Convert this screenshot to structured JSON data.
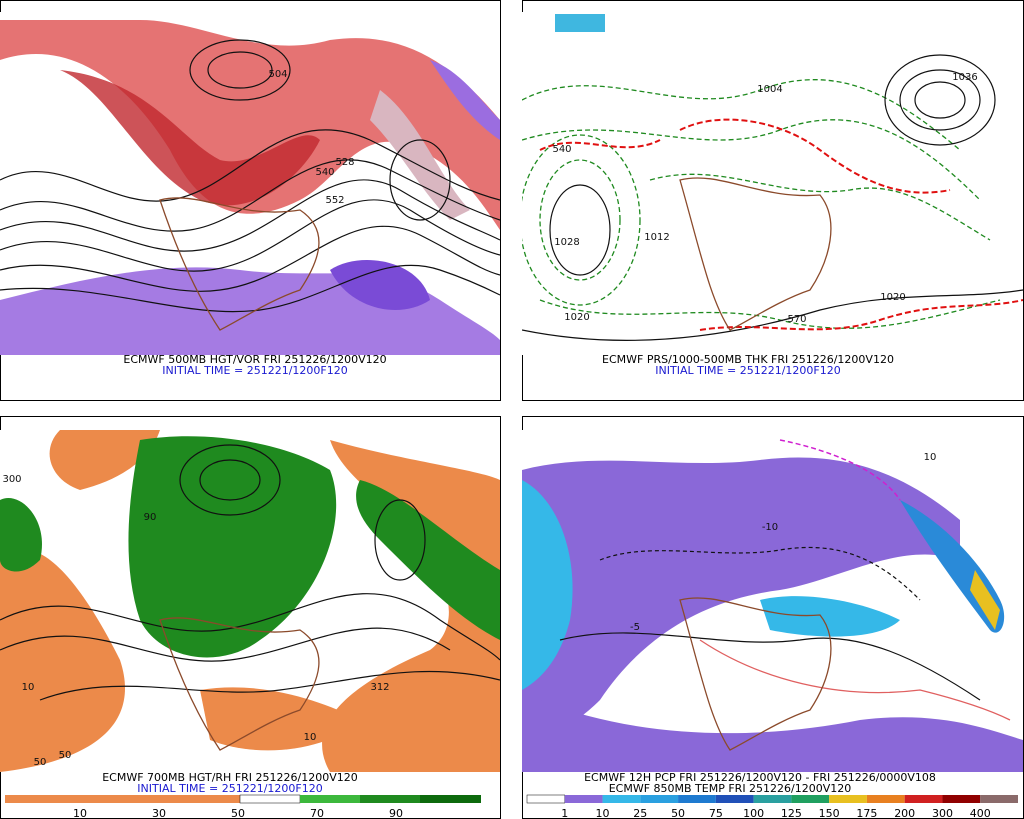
{
  "panels": [
    {
      "caption": "ECMWF 500MB HGT/VOR FRI 251226/1200V120",
      "initial": "INITIAL TIME = 251221/1200F120",
      "labels": [
        "540",
        "528",
        "504",
        "552"
      ]
    },
    {
      "caption": "ECMWF PRS/1000-500MB THK FRI 251226/1200V120",
      "initial": "INITIAL TIME = 251221/1200F120",
      "labels": [
        "1028",
        "1020",
        "1012",
        "1004",
        "540",
        "570",
        "1020",
        "1036"
      ]
    },
    {
      "caption": "ECMWF 700MB HGT/RH FRI 251226/1200V120",
      "initial": "INITIAL TIME = 251221/1200F120",
      "labels": [
        "10",
        "50",
        "90",
        "312",
        "300",
        "10",
        "50"
      ]
    },
    {
      "caption": "ECMWF 12H PCP FRI 251226/1200V120 - FRI 251226/0000V108",
      "initial": "ECMWF 850MB TEMP FRI 251226/1200V120",
      "labels": [
        "-10",
        "10",
        "-5"
      ]
    }
  ],
  "rh_colorbar": [
    10,
    30,
    50,
    70,
    90
  ],
  "pcp_colorbar": [
    1,
    10,
    25,
    50,
    75,
    100,
    125,
    150,
    175,
    200,
    300,
    400
  ]
}
